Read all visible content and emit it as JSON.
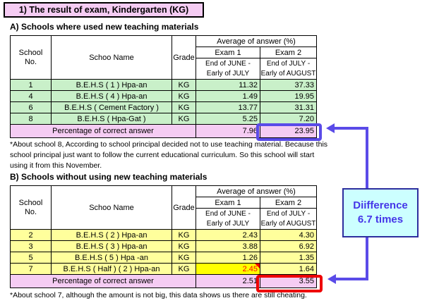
{
  "title": "1) The result of exam, Kindergarten (KG)",
  "section_a": {
    "heading": "A) Schools where used new teaching materials",
    "table": {
      "headers": {
        "school_no": "School\nNo.",
        "school_name": "Schoo Name",
        "grade": "Grade",
        "avg_answer": "Average of answer (%)",
        "exam1": "Exam 1",
        "exam2": "Exam 2",
        "exam1_period": "End of JUNE -\nEarly of JULY",
        "exam2_period": "End of JULY -\nEarly of AUGUST"
      },
      "rows": [
        {
          "no": "1",
          "name": "B.E.H.S ( 1 ) Hpa-an",
          "grade": "KG",
          "exam1": "11.32",
          "exam2": "37.33"
        },
        {
          "no": "4",
          "name": "B.E.H.S ( 4 ) Hpa-an",
          "grade": "KG",
          "exam1": "1.49",
          "exam2": "19.95"
        },
        {
          "no": "6",
          "name": "B.E.H.S ( Cement Factory )",
          "grade": "KG",
          "exam1": "13.77",
          "exam2": "31.31"
        },
        {
          "no": "8",
          "name": "B.E.H.S ( Hpa-Gat )",
          "grade": "KG",
          "exam1": "5.25",
          "exam2": "7.20"
        }
      ],
      "footer": {
        "label": "Percentage of correct answer",
        "exam1": "7.96",
        "exam2": "23.95"
      }
    },
    "note": "*About school 8, According to school principal decided not to use teaching material. Because this\nschool principal just want to follow the current educational curriculum. So this school will start\nusing it from this November."
  },
  "section_b": {
    "heading": "B) Schools without using new teaching materials",
    "table": {
      "headers": {
        "school_no": "School\nNo.",
        "school_name": "Schoo Name",
        "grade": "Grade",
        "avg_answer": "Average of answer (%)",
        "exam1": "Exam 1",
        "exam2": "Exam 2",
        "exam1_period": "End of JUNE -\nEarly of JULY",
        "exam2_period": "End of JULY -\nEarly of AUGUST"
      },
      "rows": [
        {
          "no": "2",
          "name": "B.E.H.S ( 2 ) Hpa-an",
          "grade": "KG",
          "exam1": "2.43",
          "exam2": "4.30"
        },
        {
          "no": "3",
          "name": "B.E.H.S ( 3 ) Hpa-an",
          "grade": "KG",
          "exam1": "3.88",
          "exam2": "6.92"
        },
        {
          "no": "5",
          "name": "B.E.H.S ( 5 ) Hpa -an",
          "grade": "KG",
          "exam1": "1.26",
          "exam2": "1.35"
        },
        {
          "no": "7",
          "name": "B.E.H.S ( Half ) ( 2 ) Hpa-an",
          "grade": "KG",
          "exam1": "2.45",
          "exam1_highlight": true,
          "exam2": "1.64"
        }
      ],
      "footer": {
        "label": "Percentage of correct answer",
        "exam1": "2.51",
        "exam2": "3.55"
      }
    },
    "note": "*About school 7, although the amount is not big, this data shows us there are still cheating."
  },
  "difference_callout": {
    "line1": "Diifference",
    "line2": "6.7 times"
  },
  "colors": {
    "title_bg": "#F5CCF3",
    "green_row": "#C9F0C9",
    "yellow_row": "#FFFF9C",
    "summary_row_bg": "#F5CCF3",
    "highlight_cell_bg": "#FFFF00",
    "highlight_cell_text": "#FF0000",
    "blue_accent": "#5A4BE8",
    "red_accent": "#EE0000",
    "callout_bg": "#CCFFFF",
    "callout_border": "#2D2E9E",
    "callout_text": "#4535E8"
  }
}
